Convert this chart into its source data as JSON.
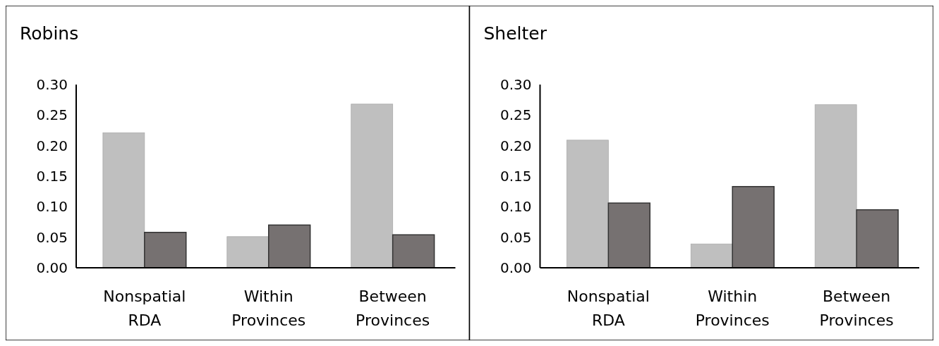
{
  "chart_data": [
    {
      "type": "bar",
      "title": "Robins",
      "categories": [
        "Nonspatial RDA",
        "Within Provinces",
        "Between Provinces"
      ],
      "ylim": [
        0,
        0.3
      ],
      "yticks": [
        {
          "value": 0,
          "label": "0.00"
        },
        {
          "value": 0.05,
          "label": "0.05"
        },
        {
          "value": 0.1,
          "label": "0.10"
        },
        {
          "value": 0.15,
          "label": "0.15"
        },
        {
          "value": 0.2,
          "label": "0.20"
        },
        {
          "value": 0.25,
          "label": "0.25"
        },
        {
          "value": 0.3,
          "label": "0.30"
        }
      ],
      "series": [
        {
          "color": "#bfbfbf",
          "values": [
            0.221,
            0.051,
            0.268
          ]
        },
        {
          "color": "#767171",
          "values": [
            0.058,
            0.07,
            0.054
          ]
        }
      ]
    },
    {
      "type": "bar",
      "title": "Shelter",
      "categories": [
        "Nonspatial RDA",
        "Within Provinces",
        "Between Provinces"
      ],
      "ylim": [
        0,
        0.3
      ],
      "yticks": [
        {
          "value": 0,
          "label": "0.00"
        },
        {
          "value": 0.05,
          "label": "0.05"
        },
        {
          "value": 0.1,
          "label": "0.10"
        },
        {
          "value": 0.15,
          "label": "0.15"
        },
        {
          "value": 0.2,
          "label": "0.20"
        },
        {
          "value": 0.25,
          "label": "0.25"
        },
        {
          "value": 0.3,
          "label": "0.30"
        }
      ],
      "series": [
        {
          "color": "#bfbfbf",
          "values": [
            0.209,
            0.039,
            0.267
          ]
        },
        {
          "color": "#767171",
          "values": [
            0.106,
            0.133,
            0.095
          ]
        }
      ]
    }
  ]
}
